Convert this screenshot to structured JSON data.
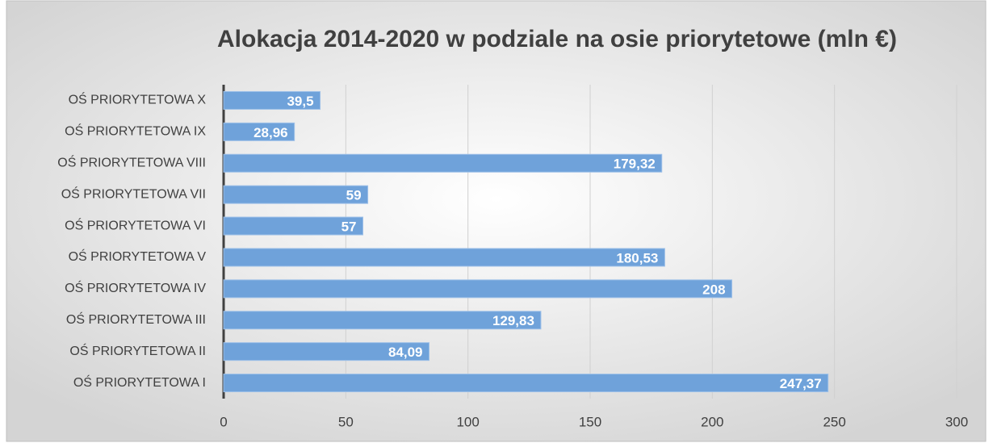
{
  "chart_data": {
    "type": "bar",
    "orientation": "horizontal",
    "title": "Alokacja 2014-2020 w podziale na osie priorytetowe (mln €)",
    "categories": [
      "OŚ PRIORYTETOWA X",
      "OŚ PRIORYTETOWA IX",
      "OŚ PRIORYTETOWA VIII",
      "OŚ PRIORYTETOWA VII",
      "OŚ PRIORYTETOWA VI",
      "OŚ PRIORYTETOWA V",
      "OŚ PRIORYTETOWA IV",
      "OŚ PRIORYTETOWA III",
      "OŚ PRIORYTETOWA II",
      "OŚ PRIORYTETOWA I"
    ],
    "values": [
      39.5,
      28.96,
      179.32,
      59,
      57,
      180.53,
      208,
      129.83,
      84.09,
      247.37
    ],
    "value_labels": [
      "39,5",
      "28,96",
      "179,32",
      "59",
      "57",
      "180,53",
      "208",
      "129,83",
      "84,09",
      "247,37"
    ],
    "color": "#6fa2da",
    "xlim": [
      0,
      300
    ],
    "xticks": [
      0,
      50,
      100,
      150,
      200,
      250,
      300
    ],
    "grid": true
  }
}
